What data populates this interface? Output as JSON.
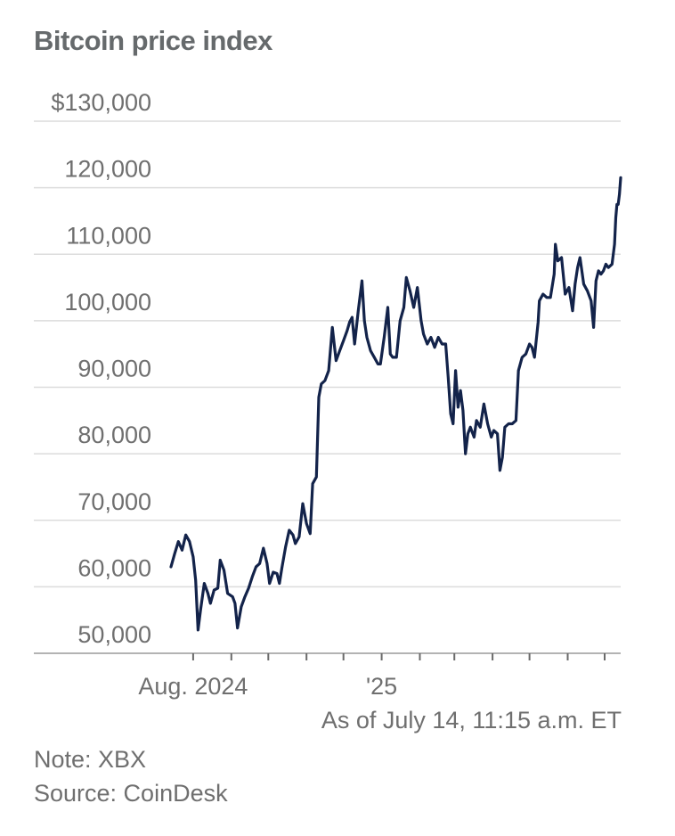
{
  "chart_data": {
    "type": "line",
    "title": "Bitcoin price index",
    "y_ticks": [
      {
        "value": 130000,
        "label": "$130,000"
      },
      {
        "value": 120000,
        "label": "120,000"
      },
      {
        "value": 110000,
        "label": "110,000"
      },
      {
        "value": 100000,
        "label": "100,000"
      },
      {
        "value": 90000,
        "label": "90,000"
      },
      {
        "value": 80000,
        "label": "80,000"
      },
      {
        "value": 70000,
        "label": "70,000"
      },
      {
        "value": 60000,
        "label": "60,000"
      },
      {
        "value": 50000,
        "label": "50,000"
      }
    ],
    "ylim": [
      48000,
      131000
    ],
    "xlim": [
      "2024-07-14",
      "2025-07-14"
    ],
    "x_tick_labels": [
      {
        "date": "2024-08-01",
        "label": "Aug. 2024"
      },
      {
        "date": "2025-01-01",
        "label": "'25"
      }
    ],
    "month_ticks": [
      "2024-08-01",
      "2024-09-01",
      "2024-10-01",
      "2024-11-01",
      "2024-12-01",
      "2025-01-01",
      "2025-02-01",
      "2025-03-01",
      "2025-04-01",
      "2025-05-01",
      "2025-06-01",
      "2025-07-01"
    ],
    "grid": true,
    "series": [
      {
        "color": "#13234a",
        "points": [
          [
            "2024-07-14",
            63000
          ],
          [
            "2024-07-17",
            65000
          ],
          [
            "2024-07-20",
            66800
          ],
          [
            "2024-07-23",
            65500
          ],
          [
            "2024-07-26",
            67800
          ],
          [
            "2024-07-29",
            66800
          ],
          [
            "2024-08-01",
            64500
          ],
          [
            "2024-08-03",
            61000
          ],
          [
            "2024-08-05",
            53500
          ],
          [
            "2024-08-07",
            56500
          ],
          [
            "2024-08-10",
            60500
          ],
          [
            "2024-08-13",
            59000
          ],
          [
            "2024-08-15",
            57500
          ],
          [
            "2024-08-18",
            59500
          ],
          [
            "2024-08-21",
            59800
          ],
          [
            "2024-08-23",
            64000
          ],
          [
            "2024-08-26",
            62500
          ],
          [
            "2024-08-29",
            59000
          ],
          [
            "2024-09-02",
            58500
          ],
          [
            "2024-09-04",
            57500
          ],
          [
            "2024-09-06",
            53800
          ],
          [
            "2024-09-09",
            57000
          ],
          [
            "2024-09-12",
            58500
          ],
          [
            "2024-09-15",
            59800
          ],
          [
            "2024-09-18",
            61500
          ],
          [
            "2024-09-21",
            63000
          ],
          [
            "2024-09-24",
            63500
          ],
          [
            "2024-09-27",
            65800
          ],
          [
            "2024-09-30",
            63500
          ],
          [
            "2024-10-02",
            60500
          ],
          [
            "2024-10-05",
            62200
          ],
          [
            "2024-10-08",
            62000
          ],
          [
            "2024-10-10",
            60500
          ],
          [
            "2024-10-12",
            62800
          ],
          [
            "2024-10-15",
            66000
          ],
          [
            "2024-10-18",
            68500
          ],
          [
            "2024-10-21",
            67800
          ],
          [
            "2024-10-23",
            66500
          ],
          [
            "2024-10-26",
            67500
          ],
          [
            "2024-10-29",
            72500
          ],
          [
            "2024-11-01",
            69500
          ],
          [
            "2024-11-04",
            68000
          ],
          [
            "2024-11-06",
            75500
          ],
          [
            "2024-11-09",
            76500
          ],
          [
            "2024-11-11",
            88500
          ],
          [
            "2024-11-13",
            90500
          ],
          [
            "2024-11-16",
            91000
          ],
          [
            "2024-11-19",
            92500
          ],
          [
            "2024-11-22",
            99000
          ],
          [
            "2024-11-25",
            94000
          ],
          [
            "2024-11-28",
            95500
          ],
          [
            "2024-12-01",
            97000
          ],
          [
            "2024-12-04",
            98500
          ],
          [
            "2024-12-06",
            99800
          ],
          [
            "2024-12-08",
            100500
          ],
          [
            "2024-12-10",
            96500
          ],
          [
            "2024-12-13",
            101500
          ],
          [
            "2024-12-16",
            106000
          ],
          [
            "2024-12-18",
            100000
          ],
          [
            "2024-12-20",
            97500
          ],
          [
            "2024-12-23",
            95500
          ],
          [
            "2024-12-26",
            94500
          ],
          [
            "2024-12-29",
            93500
          ],
          [
            "2024-12-31",
            93500
          ],
          [
            "2025-01-03",
            97500
          ],
          [
            "2025-01-06",
            102000
          ],
          [
            "2025-01-08",
            95000
          ],
          [
            "2025-01-10",
            94500
          ],
          [
            "2025-01-13",
            94500
          ],
          [
            "2025-01-16",
            100000
          ],
          [
            "2025-01-19",
            102000
          ],
          [
            "2025-01-21",
            106500
          ],
          [
            "2025-01-24",
            104500
          ],
          [
            "2025-01-27",
            102000
          ],
          [
            "2025-01-30",
            105000
          ],
          [
            "2025-02-02",
            100000
          ],
          [
            "2025-02-04",
            98000
          ],
          [
            "2025-02-07",
            96500
          ],
          [
            "2025-02-10",
            97500
          ],
          [
            "2025-02-13",
            96000
          ],
          [
            "2025-02-16",
            97500
          ],
          [
            "2025-02-19",
            96500
          ],
          [
            "2025-02-22",
            96500
          ],
          [
            "2025-02-24",
            91500
          ],
          [
            "2025-02-26",
            86000
          ],
          [
            "2025-02-28",
            84500
          ],
          [
            "2025-03-02",
            92500
          ],
          [
            "2025-03-04",
            87000
          ],
          [
            "2025-03-06",
            89500
          ],
          [
            "2025-03-08",
            86500
          ],
          [
            "2025-03-10",
            80000
          ],
          [
            "2025-03-12",
            83000
          ],
          [
            "2025-03-14",
            84000
          ],
          [
            "2025-03-17",
            82500
          ],
          [
            "2025-03-19",
            85000
          ],
          [
            "2025-03-22",
            84000
          ],
          [
            "2025-03-25",
            87500
          ],
          [
            "2025-03-28",
            84500
          ],
          [
            "2025-03-31",
            82500
          ],
          [
            "2025-04-02",
            83500
          ],
          [
            "2025-04-05",
            83000
          ],
          [
            "2025-04-07",
            77500
          ],
          [
            "2025-04-09",
            79500
          ],
          [
            "2025-04-11",
            84000
          ],
          [
            "2025-04-14",
            84500
          ],
          [
            "2025-04-17",
            84500
          ],
          [
            "2025-04-20",
            85000
          ],
          [
            "2025-04-22",
            92500
          ],
          [
            "2025-04-25",
            94500
          ],
          [
            "2025-04-28",
            95000
          ],
          [
            "2025-05-01",
            96500
          ],
          [
            "2025-05-03",
            96000
          ],
          [
            "2025-05-05",
            94500
          ],
          [
            "2025-05-08",
            99800
          ],
          [
            "2025-05-09",
            103000
          ],
          [
            "2025-05-12",
            104000
          ],
          [
            "2025-05-15",
            103500
          ],
          [
            "2025-05-18",
            103500
          ],
          [
            "2025-05-21",
            107000
          ],
          [
            "2025-05-22",
            111500
          ],
          [
            "2025-05-24",
            109000
          ],
          [
            "2025-05-27",
            109500
          ],
          [
            "2025-05-30",
            104000
          ],
          [
            "2025-06-02",
            105000
          ],
          [
            "2025-06-05",
            101500
          ],
          [
            "2025-06-07",
            105500
          ],
          [
            "2025-06-09",
            108000
          ],
          [
            "2025-06-11",
            109500
          ],
          [
            "2025-06-14",
            105500
          ],
          [
            "2025-06-17",
            104500
          ],
          [
            "2025-06-20",
            103000
          ],
          [
            "2025-06-22",
            99000
          ],
          [
            "2025-06-24",
            106000
          ],
          [
            "2025-06-26",
            107500
          ],
          [
            "2025-06-28",
            107000
          ],
          [
            "2025-06-30",
            107500
          ],
          [
            "2025-07-02",
            108500
          ],
          [
            "2025-07-04",
            108000
          ],
          [
            "2025-07-07",
            108500
          ],
          [
            "2025-07-09",
            111500
          ],
          [
            "2025-07-10",
            115500
          ],
          [
            "2025-07-11",
            117500
          ],
          [
            "2025-07-12",
            117500
          ],
          [
            "2025-07-13",
            119000
          ],
          [
            "2025-07-14",
            121500
          ]
        ]
      }
    ],
    "note_as_of": "As of July 14, 11:15 a.m. ET",
    "note": "Note: XBX",
    "source": "Source: CoinDesk"
  }
}
